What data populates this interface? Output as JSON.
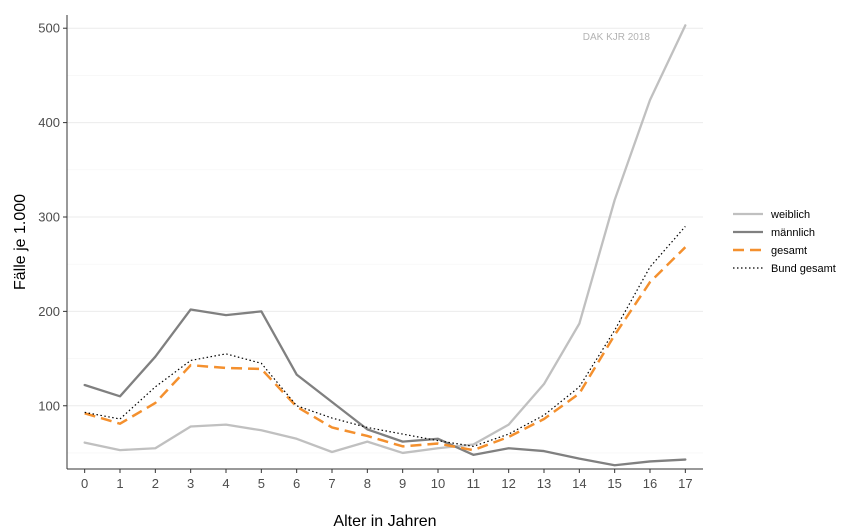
{
  "chart_data": {
    "type": "line",
    "xlabel": "Alter in Jahren",
    "ylabel": "Fälle je 1.000",
    "watermark": "DAK KJR 2018",
    "x": [
      0,
      1,
      2,
      3,
      4,
      5,
      6,
      7,
      8,
      9,
      10,
      11,
      12,
      13,
      14,
      15,
      16,
      17
    ],
    "xlim": [
      -0.5,
      17.5
    ],
    "ylim": [
      33,
      514
    ],
    "yticks": [
      100,
      200,
      300,
      400,
      500
    ],
    "grid": "horizontal",
    "legend_position": "right",
    "series": [
      {
        "name": "weiblich",
        "color": "#c0c0c0",
        "dash": "solid",
        "width": 2.3,
        "values": [
          61,
          53,
          55,
          78,
          80,
          74,
          65,
          51,
          62,
          50,
          55,
          59,
          80,
          123,
          187,
          318,
          424,
          503
        ]
      },
      {
        "name": "männlich",
        "color": "#808080",
        "dash": "solid",
        "width": 2.3,
        "values": [
          122,
          110,
          152,
          202,
          196,
          200,
          133,
          104,
          75,
          62,
          65,
          48,
          55,
          52,
          44,
          37,
          41,
          43
        ]
      },
      {
        "name": "gesamt",
        "color": "#f4902e",
        "dash": "long-dash",
        "width": 2.5,
        "values": [
          92,
          81,
          103,
          143,
          140,
          139,
          99,
          77,
          68,
          57,
          60,
          53,
          67,
          86,
          113,
          175,
          231,
          268
        ]
      },
      {
        "name": "Bund gesamt",
        "color": "#000000",
        "dash": "dotted",
        "width": 1.2,
        "values": [
          93,
          86,
          120,
          148,
          155,
          145,
          100,
          87,
          77,
          70,
          63,
          57,
          70,
          90,
          120,
          180,
          247,
          290
        ]
      }
    ]
  }
}
